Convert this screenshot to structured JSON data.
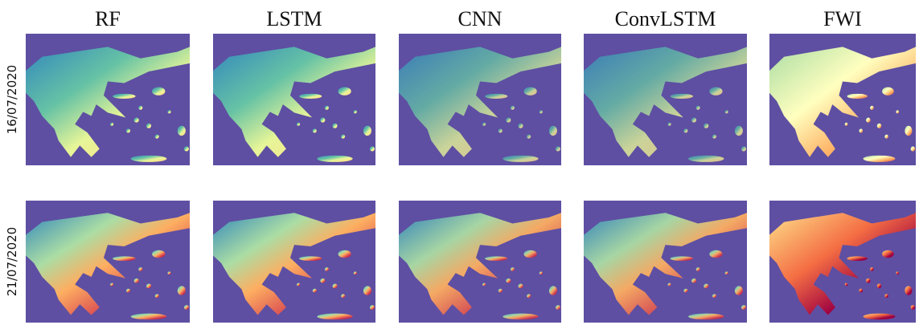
{
  "columns": [
    "RF",
    "LSTM",
    "CNN",
    "ConvLSTM",
    "FWI"
  ],
  "rows": [
    "16/07/2020",
    "21/07/2020"
  ]
}
